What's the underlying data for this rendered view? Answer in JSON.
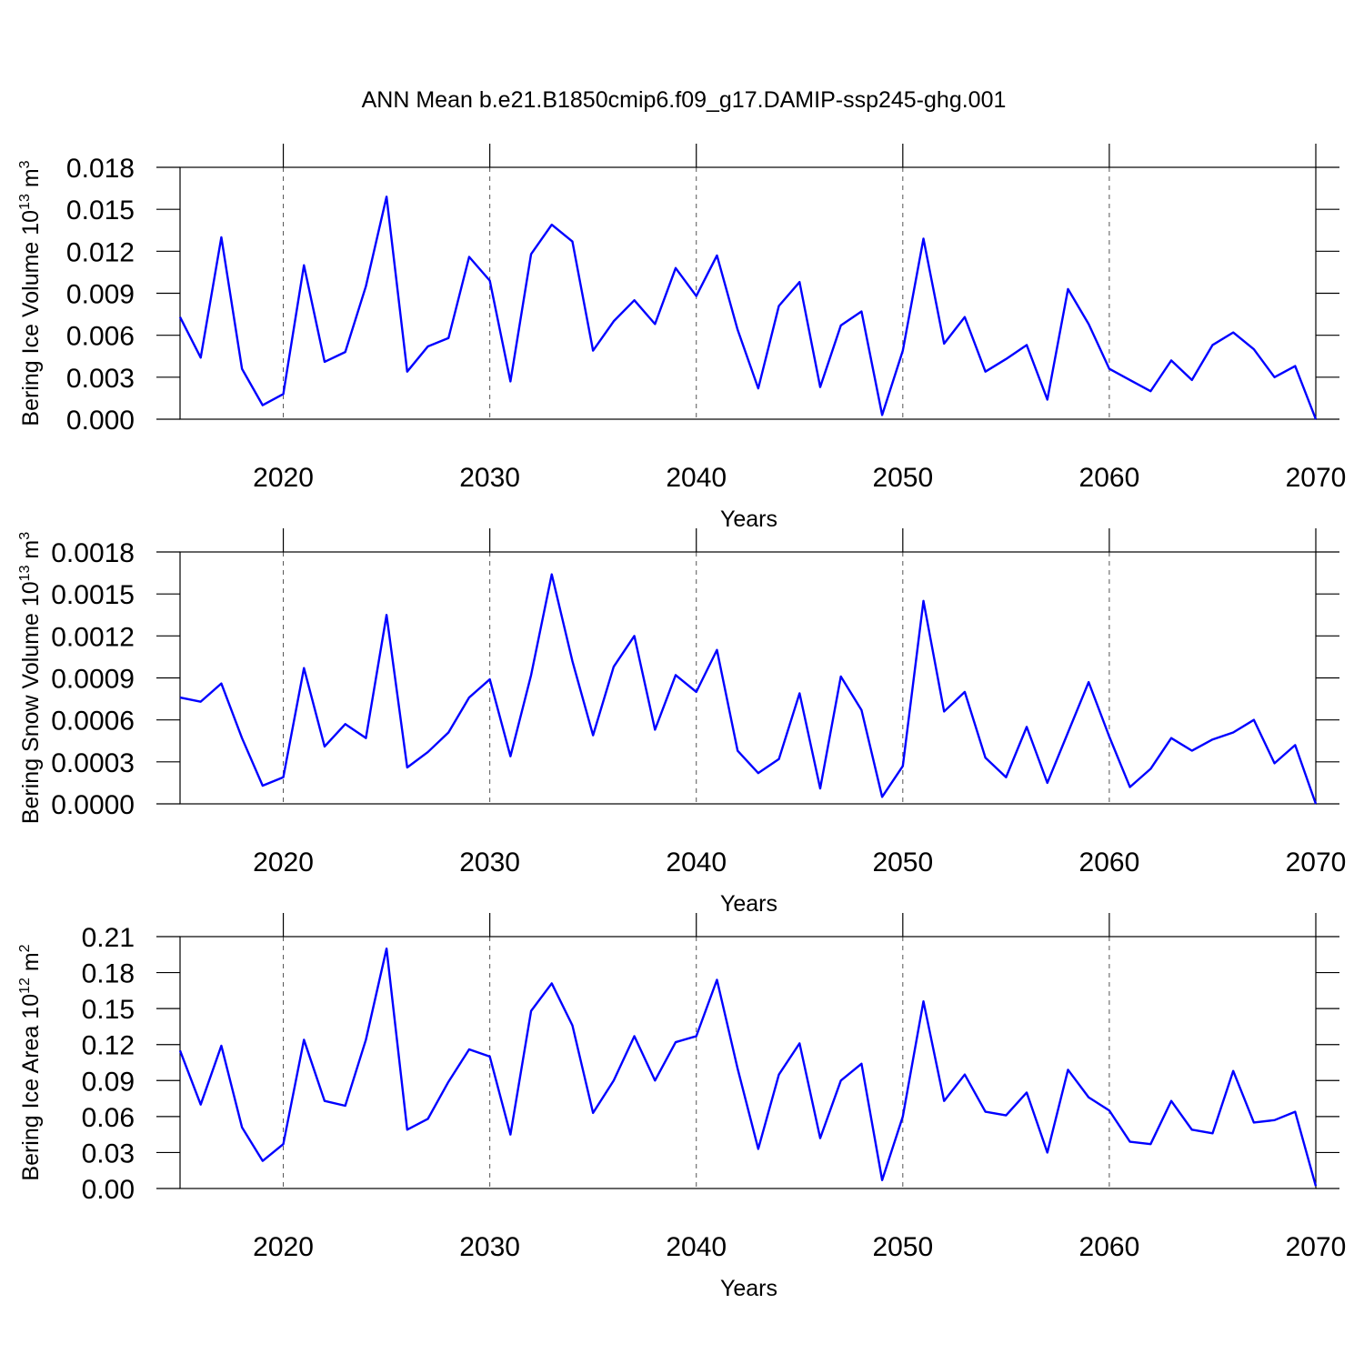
{
  "chart_data": [
    {
      "type": "line",
      "title": "ANN Mean b.e21.B1850cmip6.f09_g17.DAMIP-ssp245-ghg.001",
      "xlabel": "Years",
      "ylabel": {
        "text": "Bering Ice Volume 10",
        "exponent": "13",
        "unit": " m",
        "unit_exponent": "3"
      },
      "x": [
        2015,
        2016,
        2017,
        2018,
        2019,
        2020,
        2021,
        2022,
        2023,
        2024,
        2025,
        2026,
        2027,
        2028,
        2029,
        2030,
        2031,
        2032,
        2033,
        2034,
        2035,
        2036,
        2037,
        2038,
        2039,
        2040,
        2041,
        2042,
        2043,
        2044,
        2045,
        2046,
        2047,
        2048,
        2049,
        2050,
        2051,
        2052,
        2053,
        2054,
        2055,
        2056,
        2057,
        2058,
        2059,
        2060,
        2061,
        2062,
        2063,
        2064,
        2065,
        2066,
        2067,
        2068,
        2069,
        2070
      ],
      "series": [
        {
          "color": "#0000ff",
          "values": [
            0.0073,
            0.0044,
            0.013,
            0.0036,
            0.001,
            0.0018,
            0.011,
            0.0041,
            0.0048,
            0.0095,
            0.0159,
            0.0034,
            0.0052,
            0.0058,
            0.0116,
            0.0099,
            0.0027,
            0.0118,
            0.0139,
            0.0127,
            0.0049,
            0.007,
            0.0085,
            0.0068,
            0.0108,
            0.0088,
            0.0117,
            0.0064,
            0.0022,
            0.0081,
            0.0098,
            0.0023,
            0.0067,
            0.0077,
            0.0003,
            0.0049,
            0.0129,
            0.0054,
            0.0073,
            0.0034,
            0.0043,
            0.0053,
            0.0014,
            0.0093,
            0.0068,
            0.0036,
            0.0028,
            0.002,
            0.0042,
            0.0028,
            0.0053,
            0.0062,
            0.005,
            0.003,
            0.0038,
            0.0
          ]
        }
      ],
      "xlim": [
        2015,
        2070
      ],
      "xticks": [
        2020,
        2030,
        2040,
        2050,
        2060,
        2070
      ],
      "ylim": [
        0,
        0.018
      ],
      "yticks": [
        {
          "value": 0,
          "label": "0.000"
        },
        {
          "value": 0.003,
          "label": "0.003"
        },
        {
          "value": 0.006,
          "label": "0.006"
        },
        {
          "value": 0.009,
          "label": "0.009"
        },
        {
          "value": 0.012,
          "label": "0.012"
        },
        {
          "value": 0.015,
          "label": "0.015"
        },
        {
          "value": 0.018,
          "label": "0.018"
        }
      ],
      "grid": "x"
    },
    {
      "type": "line",
      "xlabel": "Years",
      "ylabel": {
        "text": "Bering Snow Volume 10",
        "exponent": "13",
        "unit": " m",
        "unit_exponent": "3"
      },
      "x": [
        2015,
        2016,
        2017,
        2018,
        2019,
        2020,
        2021,
        2022,
        2023,
        2024,
        2025,
        2026,
        2027,
        2028,
        2029,
        2030,
        2031,
        2032,
        2033,
        2034,
        2035,
        2036,
        2037,
        2038,
        2039,
        2040,
        2041,
        2042,
        2043,
        2044,
        2045,
        2046,
        2047,
        2048,
        2049,
        2050,
        2051,
        2052,
        2053,
        2054,
        2055,
        2056,
        2057,
        2058,
        2059,
        2060,
        2061,
        2062,
        2063,
        2064,
        2065,
        2066,
        2067,
        2068,
        2069,
        2070
      ],
      "series": [
        {
          "color": "#0000ff",
          "values": [
            0.00076,
            0.00073,
            0.00086,
            0.00047,
            0.00013,
            0.00019,
            0.00097,
            0.00041,
            0.00057,
            0.00047,
            0.00135,
            0.00026,
            0.00037,
            0.00051,
            0.00076,
            0.00089,
            0.00034,
            0.00092,
            0.00164,
            0.00102,
            0.00049,
            0.00098,
            0.0012,
            0.00053,
            0.00092,
            0.0008,
            0.0011,
            0.00038,
            0.00022,
            0.00032,
            0.00079,
            0.00011,
            0.00091,
            0.00067,
            5e-05,
            0.00027,
            0.00145,
            0.00066,
            0.0008,
            0.00033,
            0.00019,
            0.00055,
            0.00015,
            0.00051,
            0.00087,
            0.00048,
            0.00012,
            0.00025,
            0.00047,
            0.00038,
            0.00046,
            0.00051,
            0.0006,
            0.00029,
            0.00042,
            0.0
          ]
        }
      ],
      "xlim": [
        2015,
        2070
      ],
      "xticks": [
        2020,
        2030,
        2040,
        2050,
        2060,
        2070
      ],
      "ylim": [
        0,
        0.0018
      ],
      "yticks": [
        {
          "value": 0,
          "label": "0.0000"
        },
        {
          "value": 0.0003,
          "label": "0.0003"
        },
        {
          "value": 0.0006,
          "label": "0.0006"
        },
        {
          "value": 0.0009,
          "label": "0.0009"
        },
        {
          "value": 0.0012,
          "label": "0.0012"
        },
        {
          "value": 0.0015,
          "label": "0.0015"
        },
        {
          "value": 0.0018,
          "label": "0.0018"
        }
      ],
      "grid": "x"
    },
    {
      "type": "line",
      "xlabel": "Years",
      "ylabel": {
        "text": "Bering Ice Area 10",
        "exponent": "12",
        "unit": " m",
        "unit_exponent": "2"
      },
      "x": [
        2015,
        2016,
        2017,
        2018,
        2019,
        2020,
        2021,
        2022,
        2023,
        2024,
        2025,
        2026,
        2027,
        2028,
        2029,
        2030,
        2031,
        2032,
        2033,
        2034,
        2035,
        2036,
        2037,
        2038,
        2039,
        2040,
        2041,
        2042,
        2043,
        2044,
        2045,
        2046,
        2047,
        2048,
        2049,
        2050,
        2051,
        2052,
        2053,
        2054,
        2055,
        2056,
        2057,
        2058,
        2059,
        2060,
        2061,
        2062,
        2063,
        2064,
        2065,
        2066,
        2067,
        2068,
        2069,
        2070
      ],
      "series": [
        {
          "color": "#0000ff",
          "values": [
            0.115,
            0.07,
            0.119,
            0.051,
            0.023,
            0.037,
            0.124,
            0.073,
            0.069,
            0.124,
            0.2,
            0.049,
            0.058,
            0.089,
            0.116,
            0.11,
            0.045,
            0.148,
            0.171,
            0.136,
            0.063,
            0.09,
            0.127,
            0.09,
            0.122,
            0.127,
            0.174,
            0.1,
            0.033,
            0.095,
            0.121,
            0.042,
            0.09,
            0.104,
            0.007,
            0.06,
            0.156,
            0.073,
            0.095,
            0.064,
            0.061,
            0.08,
            0.03,
            0.099,
            0.076,
            0.065,
            0.039,
            0.037,
            0.073,
            0.049,
            0.046,
            0.098,
            0.055,
            0.057,
            0.064,
            0.002
          ]
        }
      ],
      "xlim": [
        2015,
        2070
      ],
      "xticks": [
        2020,
        2030,
        2040,
        2050,
        2060,
        2070
      ],
      "ylim": [
        0,
        0.21
      ],
      "yticks": [
        {
          "value": 0,
          "label": "0.00"
        },
        {
          "value": 0.03,
          "label": "0.03"
        },
        {
          "value": 0.06,
          "label": "0.06"
        },
        {
          "value": 0.09,
          "label": "0.09"
        },
        {
          "value": 0.12,
          "label": "0.12"
        },
        {
          "value": 0.15,
          "label": "0.15"
        },
        {
          "value": 0.18,
          "label": "0.18"
        },
        {
          "value": 0.21,
          "label": "0.21"
        }
      ],
      "grid": "x"
    }
  ]
}
